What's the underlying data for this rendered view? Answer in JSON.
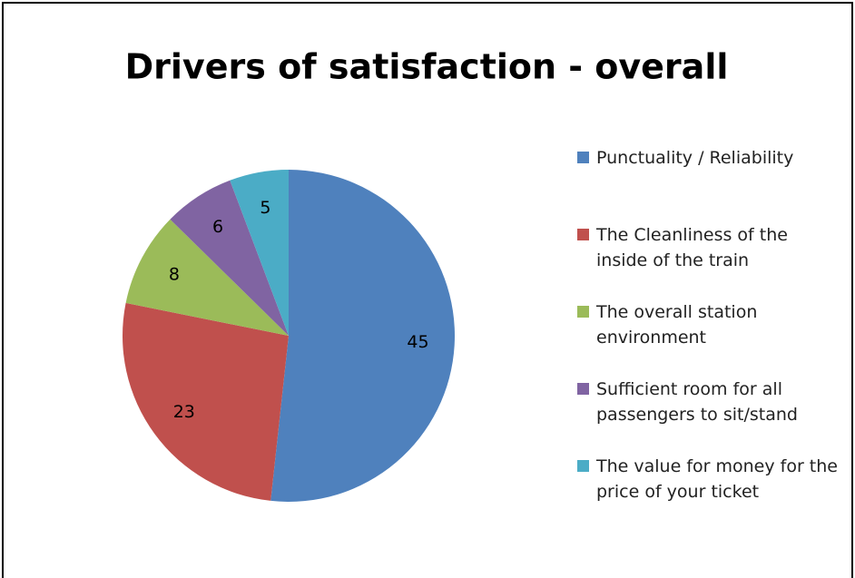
{
  "chart_data": {
    "type": "pie",
    "title": "Drivers of satisfaction - overall",
    "categories": [
      "Punctuality / Reliability",
      "The Cleanliness of the inside of the train",
      "The overall station environment",
      "Sufficient room for all passengers to sit/stand",
      "The value for money for the price of your ticket"
    ],
    "values": [
      45,
      23,
      8,
      6,
      5
    ],
    "colors": [
      "#4f81bd",
      "#c0504d",
      "#9bbb59",
      "#8064a2",
      "#4bacc6"
    ],
    "legend": "right"
  }
}
